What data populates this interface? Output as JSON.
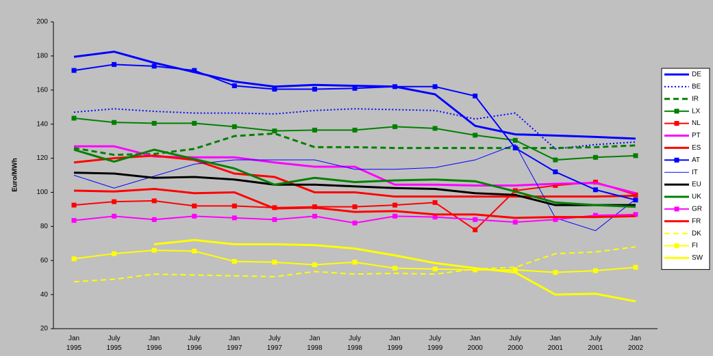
{
  "chart_data": {
    "type": "line",
    "y_label": "Euro/MWh",
    "categories": [
      "Jan 1995",
      "July 1995",
      "Jan 1996",
      "July 1996",
      "Jan 1997",
      "July 1997",
      "Jan 1998",
      "July 1998",
      "Jan 1999",
      "July 1999",
      "Jan 2000",
      "July 2000",
      "Jan 2001",
      "July 2001",
      "Jan 2002"
    ],
    "ylim": [
      20,
      200
    ],
    "yticks": [
      20,
      40,
      60,
      80,
      100,
      120,
      140,
      160,
      180,
      200
    ],
    "grid": false,
    "legend": "right",
    "series": [
      {
        "name": "DE",
        "color": "#0000ff",
        "width": 3,
        "dash": "solid",
        "marker": "none",
        "values": [
          179.5,
          182.5,
          176,
          170.5,
          165,
          162,
          163,
          162.5,
          162,
          157.5,
          139,
          134,
          133.3,
          132.5,
          131.5
        ]
      },
      {
        "name": "BE",
        "color": "#0000ff",
        "width": 2,
        "dash": "dot",
        "marker": "none",
        "values": [
          147,
          149,
          147.5,
          146.5,
          146.5,
          146,
          148,
          149,
          148.5,
          148,
          143,
          146.5,
          125.5,
          128,
          129.5
        ]
      },
      {
        "name": "IR",
        "color": "#008000",
        "width": 3,
        "dash": "dash",
        "marker": "none",
        "values": [
          126,
          122,
          122.5,
          125.5,
          133,
          134.5,
          126.5,
          126.5,
          126,
          126,
          126,
          126,
          126,
          126.5,
          127.5
        ]
      },
      {
        "name": "LX",
        "color": "#008000",
        "width": 2,
        "dash": "solid",
        "marker": "square",
        "values": [
          143.5,
          141,
          140.5,
          140.5,
          138.5,
          136,
          136.5,
          136.5,
          138.5,
          137.5,
          133.5,
          130.5,
          119,
          120.5,
          121.5
        ]
      },
      {
        "name": "NL",
        "color": "#ff0000",
        "width": 2,
        "dash": "solid",
        "marker": "square",
        "values": [
          92.5,
          94.5,
          95,
          92,
          92,
          91,
          91.5,
          91.5,
          92.5,
          94,
          78,
          101,
          104,
          106,
          98.5
        ]
      },
      {
        "name": "PT",
        "color": "#ff00ff",
        "width": 3,
        "dash": "solid",
        "marker": "none",
        "values": [
          127,
          127,
          121,
          120.5,
          120.5,
          117.5,
          115,
          115,
          104.5,
          104.5,
          104,
          104,
          105,
          105.5,
          99.5
        ]
      },
      {
        "name": "ES",
        "color": "#ff0000",
        "width": 3,
        "dash": "solid",
        "marker": "none",
        "values": [
          117.5,
          120,
          121.5,
          119,
          111,
          109,
          100,
          100,
          97.5,
          97.5,
          97.5,
          97.5,
          97.5,
          97.5,
          98
        ]
      },
      {
        "name": "AT",
        "color": "#0000ff",
        "width": 2,
        "dash": "solid",
        "marker": "square",
        "values": [
          171.5,
          175,
          174,
          171.5,
          162.5,
          160.5,
          160.5,
          161,
          162,
          162,
          156.5,
          126,
          112,
          101.5,
          95.5
        ]
      },
      {
        "name": "IT",
        "color": "#0000ff",
        "width": 1,
        "dash": "solid",
        "marker": "none",
        "values": [
          110,
          102.5,
          109.5,
          116.5,
          119,
          119,
          119,
          113.5,
          113.5,
          114.5,
          119,
          128,
          85,
          77.5,
          96
        ]
      },
      {
        "name": "EU",
        "color": "#000000",
        "width": 3,
        "dash": "solid",
        "marker": "none",
        "values": [
          111.5,
          111,
          108.5,
          109,
          107.5,
          104.5,
          104.5,
          103.5,
          102.5,
          102,
          99.5,
          98.5,
          92.5,
          92.5,
          92.5
        ]
      },
      {
        "name": "UK",
        "color": "#008000",
        "width": 3,
        "dash": "solid",
        "marker": "none",
        "values": [
          125,
          118,
          125,
          119.5,
          114,
          104.5,
          108.5,
          106,
          107,
          107.5,
          106.5,
          100.5,
          94,
          92.5,
          91.5
        ]
      },
      {
        "name": "GR",
        "color": "#ff00ff",
        "width": 2,
        "dash": "solid",
        "marker": "square",
        "values": [
          83.5,
          86,
          84,
          86,
          85,
          84,
          86,
          82,
          86,
          85.5,
          84,
          82.5,
          84,
          86.5,
          87
        ]
      },
      {
        "name": "FR",
        "color": "#ff0000",
        "width": 3,
        "dash": "solid",
        "marker": "none",
        "values": [
          101,
          100.5,
          102,
          99.5,
          100,
          90.5,
          91,
          88.5,
          89,
          87,
          87,
          85,
          85.5,
          85.5,
          86
        ]
      },
      {
        "name": "DK",
        "color": "#ffff00",
        "width": 2,
        "dash": "dash",
        "marker": "none",
        "values": [
          47.5,
          49,
          52,
          51.5,
          51,
          50.5,
          53.5,
          52,
          52.5,
          52,
          55,
          56,
          64,
          65,
          68
        ]
      },
      {
        "name": "FI",
        "color": "#ffff00",
        "width": 2,
        "dash": "solid",
        "marker": "square",
        "values": [
          61,
          64,
          66,
          65.5,
          59.5,
          59,
          57.5,
          59,
          55.5,
          55,
          54.5,
          54.5,
          53,
          54,
          56
        ]
      },
      {
        "name": "SW",
        "color": "#ffff00",
        "width": 3,
        "dash": "solid",
        "marker": "none",
        "values": [
          null,
          null,
          69.5,
          72,
          69.5,
          69.5,
          69,
          67,
          63,
          58.5,
          55.5,
          53,
          40,
          40.5,
          36
        ]
      }
    ]
  }
}
